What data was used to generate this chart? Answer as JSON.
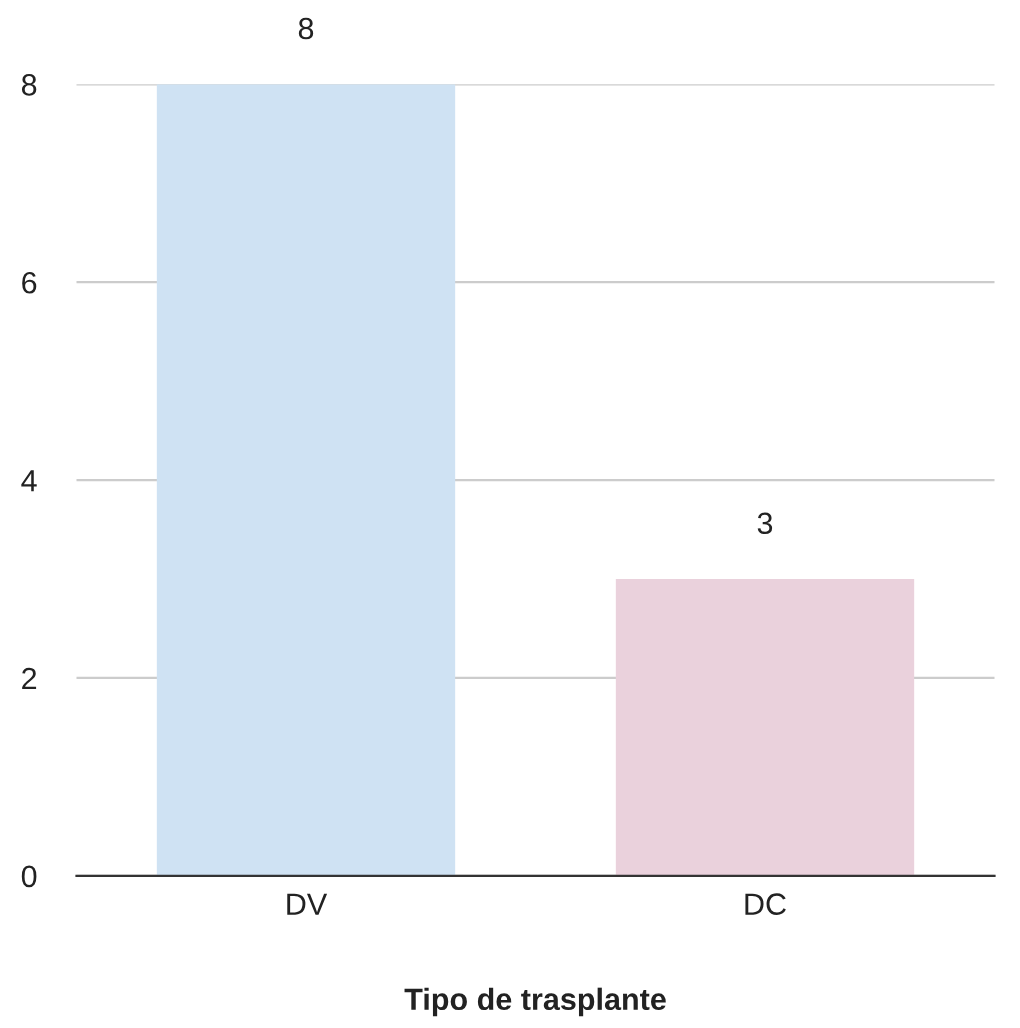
{
  "chart_data": {
    "type": "bar",
    "xlabel": "Tipo de trasplante",
    "categories": [
      "DV",
      "DC"
    ],
    "values": [
      8,
      3
    ],
    "colors": [
      "#cfe2f3",
      "#ead1dc"
    ],
    "ylim": [
      0,
      8
    ],
    "yticks": [
      0,
      2,
      4,
      6,
      8
    ],
    "grid": "y",
    "data_labels": true,
    "legend": false
  }
}
